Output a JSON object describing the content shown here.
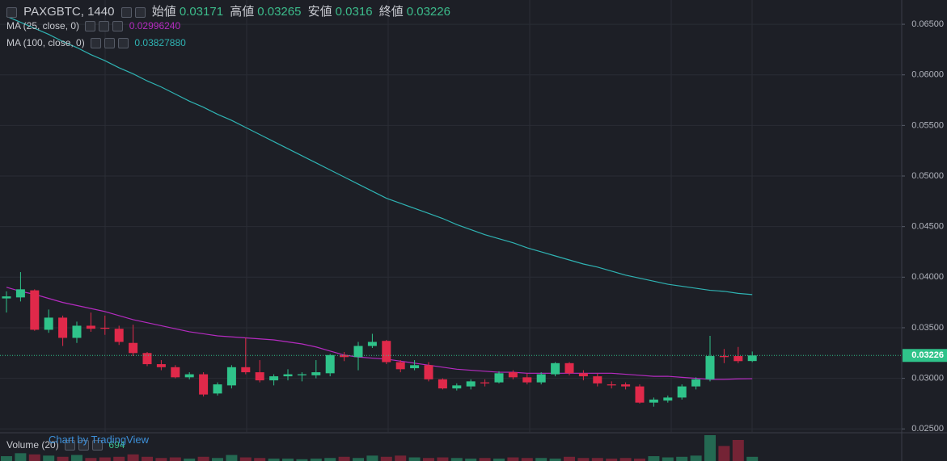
{
  "chart_data": {
    "type": "candlestick",
    "title": "PAXGBTC, 1440",
    "ohlc_labels": [
      "始値",
      "高値",
      "安値",
      "終値"
    ],
    "up_color": "#2fc38a",
    "down_color": "#e0294a",
    "open": [
      0.0379,
      0.038,
      0.0387,
      0.0348,
      0.036,
      0.034,
      0.0352,
      0.035,
      0.0349,
      0.0335,
      0.0325,
      0.0314,
      0.0311,
      0.0301,
      0.0304,
      0.0285,
      0.0293,
      0.0311,
      0.0306,
      0.0298,
      0.0302,
      0.0303,
      0.0303,
      0.0305,
      0.0323,
      0.0321,
      0.0332,
      0.0337,
      0.0316,
      0.031,
      0.0313,
      0.0299,
      0.029,
      0.0292,
      0.0296,
      0.0296,
      0.0306,
      0.0301,
      0.0296,
      0.0304,
      0.0315,
      0.0305,
      0.0302,
      0.0294,
      0.0294,
      0.0292,
      0.0276,
      0.0278,
      0.0281,
      0.0292,
      0.0299,
      0.0322,
      0.0322,
      0.03171
    ],
    "high": [
      0.0386,
      0.0405,
      0.0388,
      0.0368,
      0.0362,
      0.0356,
      0.0365,
      0.0362,
      0.0352,
      0.0353,
      0.0326,
      0.0318,
      0.0313,
      0.0306,
      0.0306,
      0.0296,
      0.0313,
      0.034,
      0.0318,
      0.0304,
      0.0309,
      0.0306,
      0.0318,
      0.0324,
      0.0326,
      0.0336,
      0.0344,
      0.0338,
      0.0318,
      0.0318,
      0.0316,
      0.03,
      0.0295,
      0.0299,
      0.0299,
      0.0307,
      0.0308,
      0.0305,
      0.0306,
      0.0316,
      0.0316,
      0.0308,
      0.0305,
      0.0297,
      0.0296,
      0.0294,
      0.0281,
      0.0283,
      0.0294,
      0.0301,
      0.0342,
      0.0329,
      0.0331,
      0.03265
    ],
    "low": [
      0.0365,
      0.0376,
      0.0347,
      0.0345,
      0.0332,
      0.0335,
      0.0346,
      0.0343,
      0.0333,
      0.0322,
      0.0312,
      0.0308,
      0.03,
      0.0299,
      0.0282,
      0.0283,
      0.029,
      0.0304,
      0.0296,
      0.0293,
      0.0298,
      0.0297,
      0.03,
      0.0302,
      0.0317,
      0.0308,
      0.033,
      0.0314,
      0.0306,
      0.0308,
      0.0297,
      0.0289,
      0.0288,
      0.0289,
      0.0292,
      0.0295,
      0.0299,
      0.0294,
      0.0294,
      0.0302,
      0.0303,
      0.0298,
      0.0292,
      0.029,
      0.0289,
      0.0275,
      0.0272,
      0.0276,
      0.0279,
      0.0289,
      0.0297,
      0.0315,
      0.0315,
      0.0316
    ],
    "close": [
      0.0381,
      0.0388,
      0.0348,
      0.036,
      0.034,
      0.0352,
      0.0349,
      0.0349,
      0.0336,
      0.0325,
      0.0314,
      0.0311,
      0.0301,
      0.0304,
      0.0284,
      0.0294,
      0.0311,
      0.0306,
      0.0298,
      0.0302,
      0.0304,
      0.0304,
      0.0306,
      0.0323,
      0.0321,
      0.0332,
      0.0336,
      0.0316,
      0.0309,
      0.0313,
      0.0299,
      0.029,
      0.0293,
      0.0297,
      0.0295,
      0.0305,
      0.0301,
      0.0296,
      0.0304,
      0.0315,
      0.0305,
      0.0302,
      0.0295,
      0.0293,
      0.0292,
      0.0276,
      0.0279,
      0.0281,
      0.0292,
      0.0299,
      0.0322,
      0.0321,
      0.0317,
      0.03226
    ],
    "ma": [
      {
        "name": "MA (25, close, 0)",
        "color": "#b52bc0",
        "last_label": "0.02996240",
        "values": [
          0.039,
          0.0386,
          0.0383,
          0.0379,
          0.0375,
          0.0372,
          0.0369,
          0.0366,
          0.0362,
          0.0358,
          0.0355,
          0.0352,
          0.0349,
          0.0346,
          0.0344,
          0.0342,
          0.0341,
          0.034,
          0.0339,
          0.0338,
          0.0336,
          0.0334,
          0.0331,
          0.0327,
          0.0323,
          0.0321,
          0.032,
          0.0319,
          0.0317,
          0.0315,
          0.0313,
          0.0311,
          0.0309,
          0.0308,
          0.0307,
          0.0306,
          0.0306,
          0.0305,
          0.0305,
          0.0305,
          0.0305,
          0.0305,
          0.0305,
          0.0305,
          0.0304,
          0.0303,
          0.0302,
          0.0302,
          0.0301,
          0.03,
          0.0299,
          0.0299,
          0.02995,
          0.0299624
        ]
      },
      {
        "name": "MA (100, close, 0)",
        "color": "#2fb3b3",
        "last_label": "0.03827880",
        "values": [
          0.0658,
          0.0652,
          0.0646,
          0.064,
          0.0633,
          0.0627,
          0.062,
          0.0614,
          0.0607,
          0.0601,
          0.0594,
          0.0588,
          0.0581,
          0.0574,
          0.0568,
          0.0561,
          0.0555,
          0.0548,
          0.0541,
          0.0534,
          0.0527,
          0.052,
          0.0513,
          0.0506,
          0.0499,
          0.0492,
          0.0485,
          0.0478,
          0.0473,
          0.0468,
          0.0463,
          0.0458,
          0.0452,
          0.0447,
          0.0442,
          0.0438,
          0.0434,
          0.0429,
          0.0425,
          0.0421,
          0.0417,
          0.0413,
          0.041,
          0.0406,
          0.0402,
          0.0399,
          0.0396,
          0.0393,
          0.0391,
          0.0389,
          0.0387,
          0.0386,
          0.0384,
          0.0382788
        ]
      }
    ],
    "volume": {
      "name": "Volume (20)",
      "values": [
        800,
        1300,
        1100,
        900,
        700,
        1000,
        500,
        600,
        700,
        1100,
        700,
        500,
        600,
        400,
        700,
        500,
        1000,
        600,
        500,
        400,
        400,
        300,
        400,
        500,
        700,
        500,
        900,
        700,
        900,
        600,
        500,
        600,
        500,
        400,
        500,
        400,
        600,
        500,
        500,
        400,
        700,
        500,
        500,
        400,
        500,
        400,
        800,
        600,
        700,
        900,
        4300,
        2500,
        3500,
        694
      ]
    },
    "ylim": [
      0.0247,
      0.0674
    ],
    "yticks": [
      {
        "value": 0.025,
        "label": "0.02500"
      },
      {
        "value": 0.03,
        "label": "0.03000"
      },
      {
        "value": 0.035,
        "label": "0.03500"
      },
      {
        "value": 0.04,
        "label": "0.04000"
      },
      {
        "value": 0.045,
        "label": "0.04500"
      },
      {
        "value": 0.05,
        "label": "0.05000"
      },
      {
        "value": 0.055,
        "label": "0.05500"
      },
      {
        "value": 0.06,
        "label": "0.06000"
      },
      {
        "value": 0.065,
        "label": "0.06500"
      }
    ],
    "grid": true,
    "watermark": "Chart by TradingView"
  }
}
